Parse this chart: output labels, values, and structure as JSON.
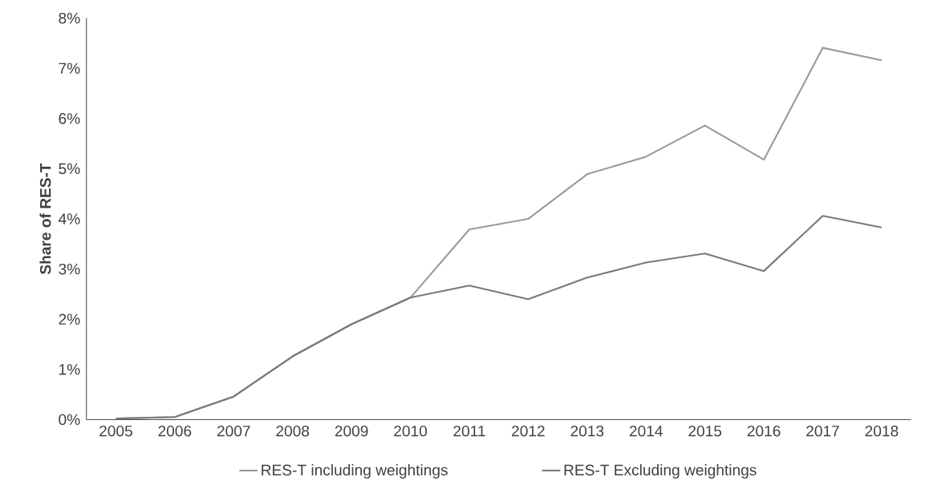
{
  "chart_data": {
    "type": "line",
    "ylabel": "Share of RES-T",
    "categories": [
      "2005",
      "2006",
      "2007",
      "2008",
      "2009",
      "2010",
      "2011",
      "2012",
      "2013",
      "2014",
      "2015",
      "2016",
      "2017",
      "2018"
    ],
    "series": [
      {
        "name": "RES-T including weightings",
        "color": "#9a9a9a",
        "values": [
          0.02,
          0.05,
          0.46,
          1.26,
          1.9,
          2.43,
          3.79,
          4.0,
          4.89,
          5.24,
          5.86,
          5.18,
          7.41,
          7.16
        ]
      },
      {
        "name": "RES-T Excluding weightings",
        "color": "#7a7a7a",
        "values": [
          0.02,
          0.05,
          0.46,
          1.26,
          1.9,
          2.43,
          2.67,
          2.4,
          2.83,
          3.13,
          3.31,
          2.96,
          4.06,
          3.83
        ]
      }
    ],
    "ylim": [
      0,
      8
    ],
    "yticks": [
      {
        "value": 0,
        "label": "0%"
      },
      {
        "value": 1,
        "label": "1%"
      },
      {
        "value": 2,
        "label": "2%"
      },
      {
        "value": 3,
        "label": "3%"
      },
      {
        "value": 4,
        "label": "4%"
      },
      {
        "value": 5,
        "label": "5%"
      },
      {
        "value": 6,
        "label": "6%"
      },
      {
        "value": 7,
        "label": "7%"
      },
      {
        "value": 8,
        "label": "8%"
      }
    ],
    "grid": false,
    "legend": "bottom",
    "marker": "none",
    "line_style": "solid"
  }
}
